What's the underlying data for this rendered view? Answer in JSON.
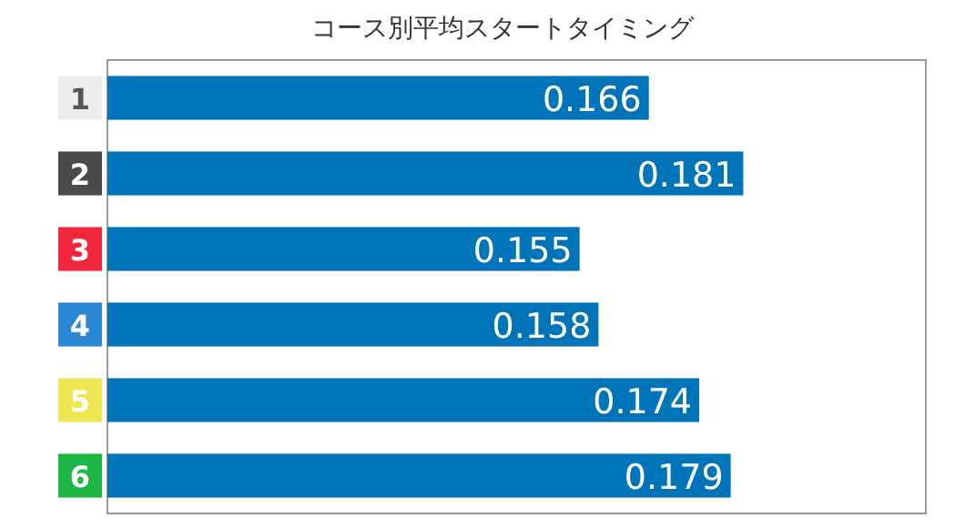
{
  "chart_data": {
    "type": "bar",
    "orientation": "horizontal",
    "title": "コース別平均スタートタイミング",
    "categories": [
      "1",
      "2",
      "3",
      "4",
      "5",
      "6"
    ],
    "values": [
      0.166,
      0.181,
      0.155,
      0.158,
      0.174,
      0.179
    ],
    "color": "#0074b8",
    "xlim": [
      0.08,
      0.21
    ],
    "data_labels": true,
    "tick_labels": "y"
  }
}
